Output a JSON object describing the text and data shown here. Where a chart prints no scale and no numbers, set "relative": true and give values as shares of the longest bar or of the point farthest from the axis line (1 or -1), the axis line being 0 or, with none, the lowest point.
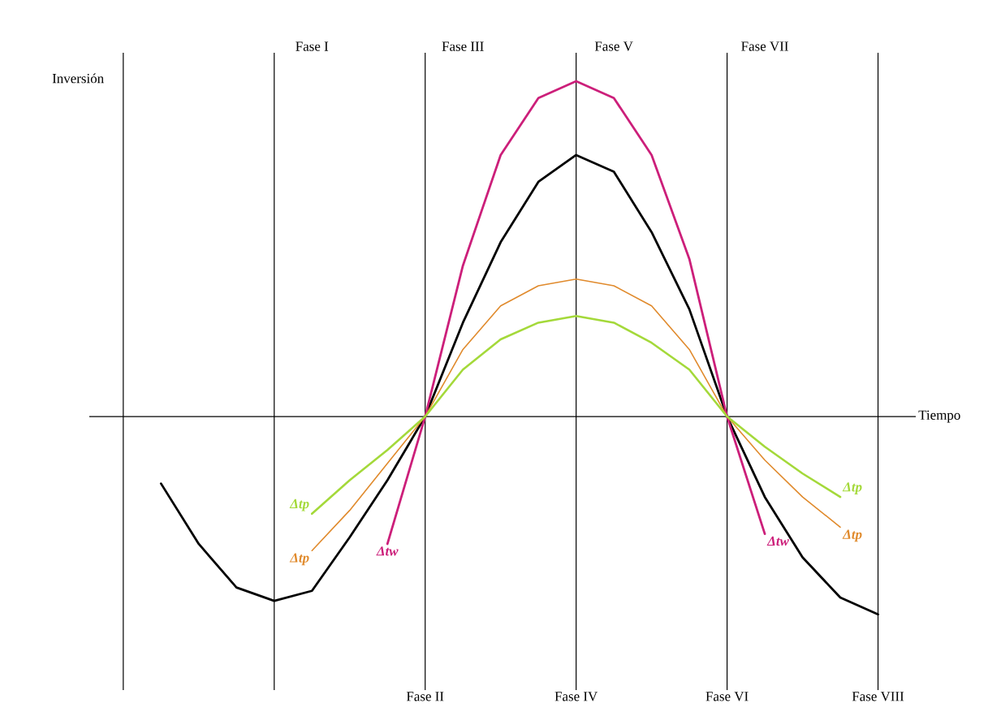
{
  "chart_data": {
    "type": "line",
    "relative": true,
    "xlabel": "Tiempo",
    "ylabel": "Inversión",
    "tick_labels": "x",
    "grid": "x",
    "legend": false,
    "marker": "none",
    "line_style": "solid",
    "categories": [
      null,
      null,
      null,
      null,
      null,
      "Fase I",
      null,
      null,
      "Fase II",
      "Fase III",
      null,
      null,
      "Fase IV",
      "Fase V",
      null,
      null,
      "Fase VI",
      "Fase VII",
      null,
      null,
      "Fase VIII"
    ],
    "series": [
      {
        "color": "#000000",
        "values": [
          null,
          -0.2,
          -0.38,
          -0.51,
          -0.55,
          -0.52,
          -0.36,
          -0.19,
          0,
          0.28,
          0.52,
          0.7,
          0.78,
          0.73,
          0.55,
          0.32,
          0,
          -0.24,
          -0.42,
          -0.54,
          -0.59
        ]
      },
      {
        "name": "Δtw",
        "color": "#cc1f7a",
        "values": [
          null,
          null,
          null,
          null,
          null,
          null,
          null,
          -0.38,
          0,
          0.45,
          0.78,
          0.95,
          1.0,
          0.95,
          0.78,
          0.47,
          0,
          -0.35,
          null,
          null,
          null
        ]
      },
      {
        "name": "Δtp",
        "color": "#e08a2c",
        "values": [
          null,
          null,
          null,
          null,
          null,
          -0.4,
          -0.28,
          -0.14,
          0,
          0.2,
          0.33,
          0.39,
          0.41,
          0.39,
          0.33,
          0.2,
          0,
          -0.13,
          -0.24,
          -0.33,
          null
        ]
      },
      {
        "name": "Δtp",
        "color": "#a4d93a",
        "values": [
          null,
          null,
          null,
          null,
          null,
          -0.29,
          -0.19,
          -0.1,
          0,
          0.14,
          0.23,
          0.28,
          0.3,
          0.28,
          0.22,
          0.14,
          0,
          -0.09,
          -0.17,
          -0.24,
          null
        ]
      }
    ]
  }
}
